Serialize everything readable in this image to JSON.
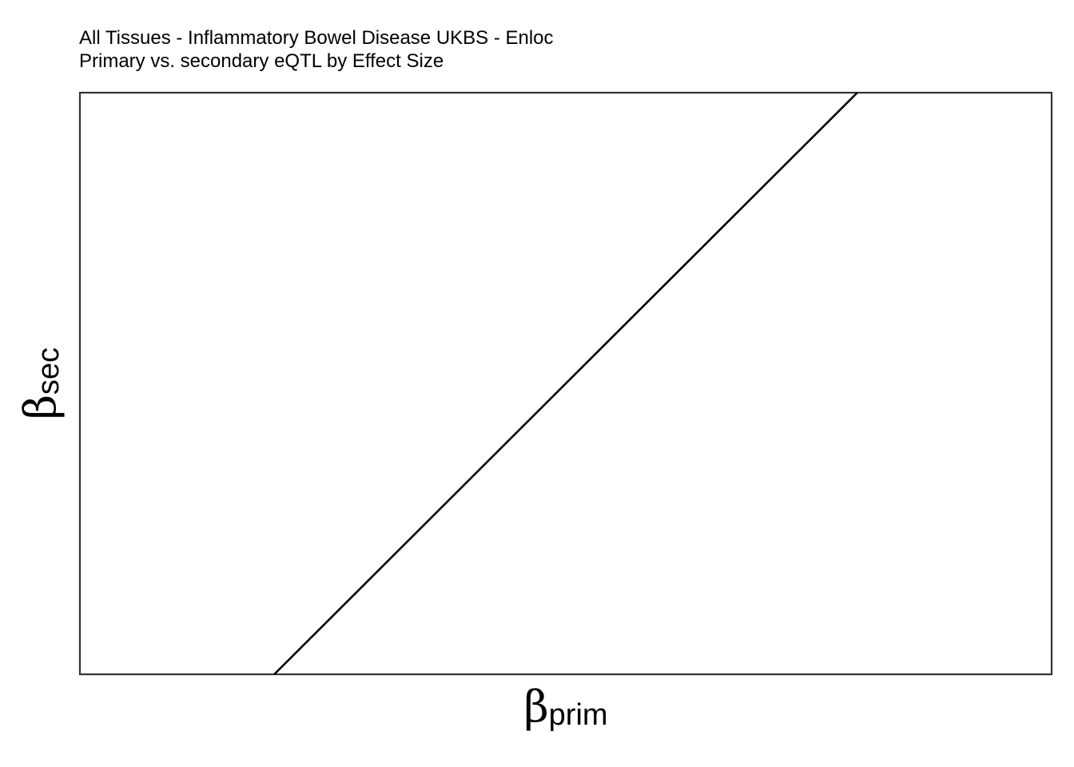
{
  "chart_data": {
    "type": "line",
    "title": "All Tissues - Inflammatory Bowel Disease UKBS - Enloc",
    "subtitle": "Primary vs. secondary eQTL by Effect Size",
    "xlabel": {
      "symbol": "β",
      "subscript": "prim"
    },
    "ylabel": {
      "symbol": "β",
      "subscript": "sec"
    },
    "xlim": [
      0,
      1
    ],
    "ylim": [
      0,
      1
    ],
    "grid": false,
    "axis_ticks": false,
    "series": [
      {
        "values": [
          {
            "x": 0.2,
            "y": 0.0
          },
          {
            "x": 0.8,
            "y": 1.0
          }
        ]
      }
    ],
    "colors": {
      "line": "#000000",
      "panel_border": "#333333",
      "background": "#ffffff"
    }
  }
}
